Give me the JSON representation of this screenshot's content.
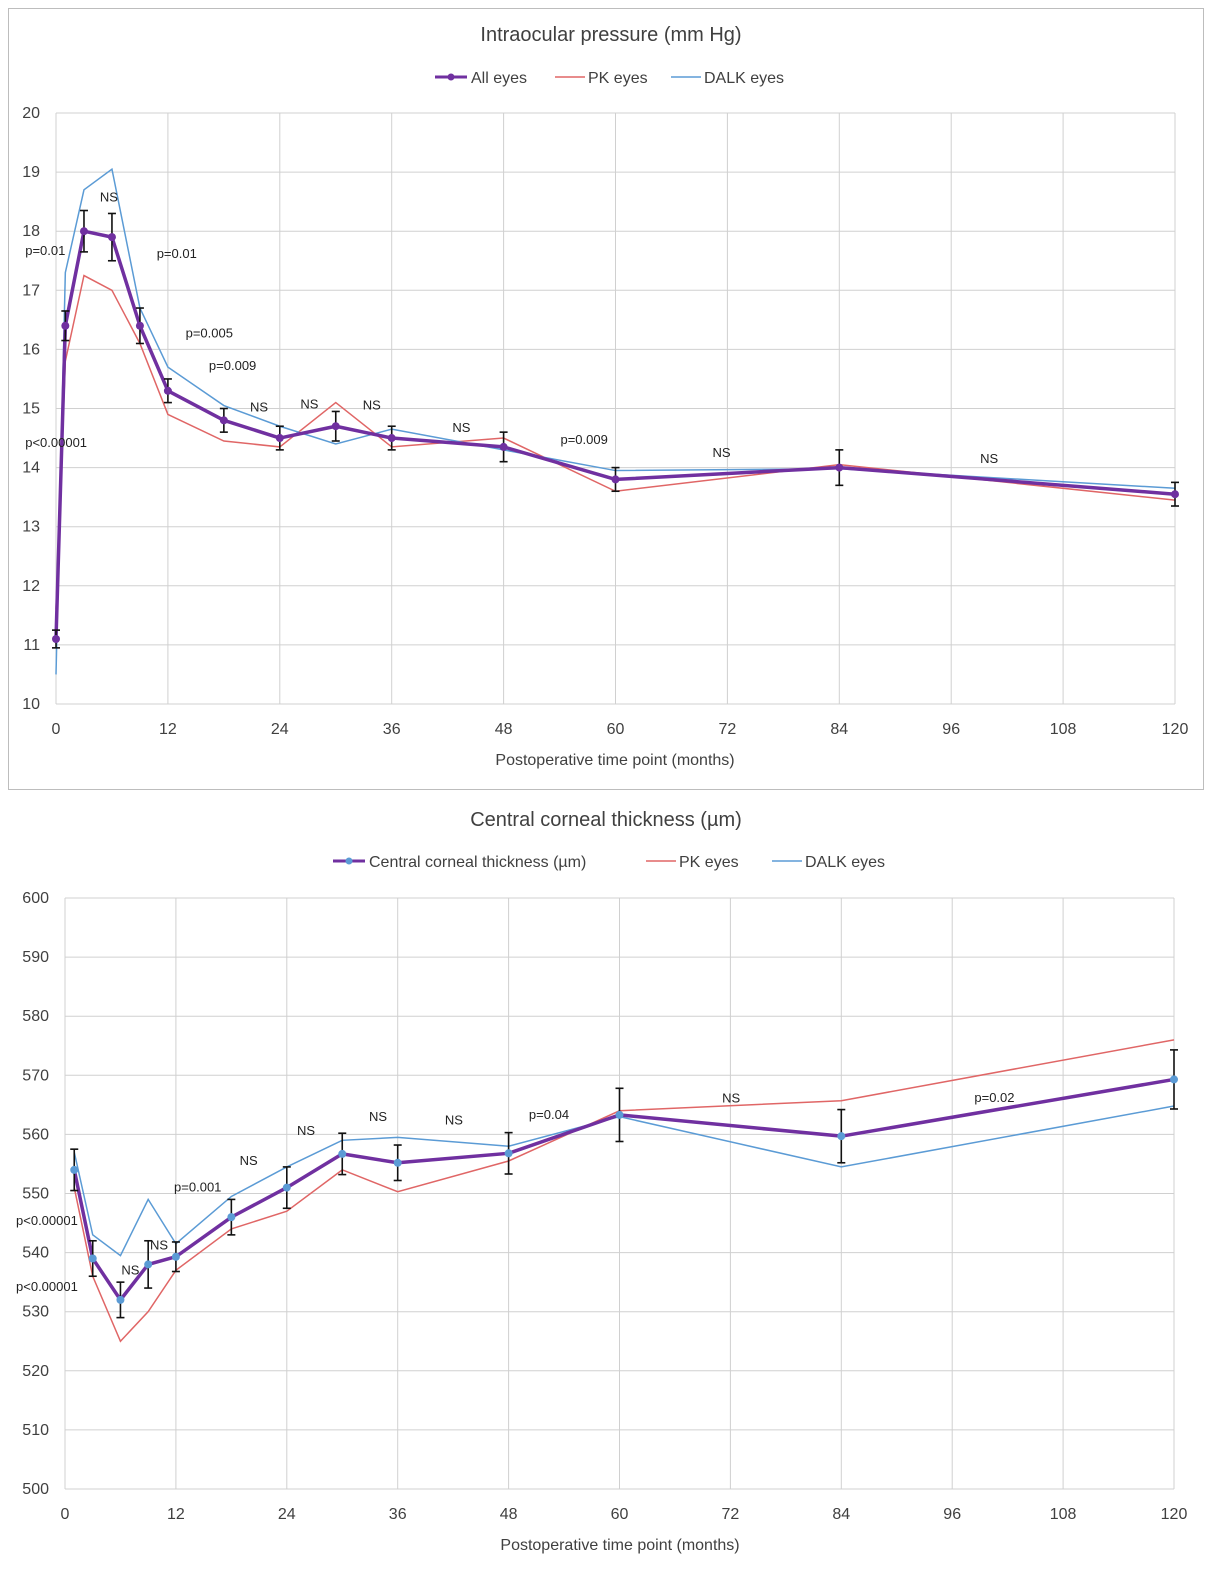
{
  "chart_data": [
    {
      "type": "line",
      "title": "Intraocular pressure (mm Hg)",
      "xlabel": "Postoperative time point (months)",
      "ylabel": "",
      "xlim": [
        0,
        120
      ],
      "ylim": [
        10,
        20
      ],
      "xticks": [
        "0",
        "12",
        "24",
        "36",
        "48",
        "60",
        "72",
        "84",
        "96",
        "108",
        "120"
      ],
      "yticks": [
        "10",
        "11",
        "12",
        "13",
        "14",
        "15",
        "16",
        "17",
        "18",
        "19",
        "20"
      ],
      "grid": true,
      "legend_position": "top",
      "colors": {
        "all": "#7030a0",
        "pk": "#e06666",
        "dalk": "#5b9bd5"
      },
      "series": [
        {
          "name": "All eyes",
          "x": [
            0,
            1,
            3,
            6,
            9,
            12,
            18,
            24,
            30,
            36,
            48,
            60,
            84,
            120
          ],
          "y": [
            11.1,
            16.4,
            18.0,
            17.9,
            16.4,
            15.3,
            14.8,
            14.5,
            14.7,
            14.5,
            14.35,
            13.8,
            14.0,
            13.55
          ],
          "err": [
            0.15,
            0.25,
            0.35,
            0.4,
            0.3,
            0.2,
            0.2,
            0.2,
            0.25,
            0.2,
            0.25,
            0.2,
            0.3,
            0.2
          ]
        },
        {
          "name": "PK eyes",
          "x": [
            0,
            1,
            3,
            6,
            9,
            12,
            18,
            24,
            30,
            36,
            48,
            60,
            84,
            120
          ],
          "y": [
            11.6,
            15.8,
            17.25,
            17.0,
            16.1,
            14.9,
            14.45,
            14.35,
            15.1,
            14.35,
            14.5,
            13.6,
            14.05,
            13.45
          ]
        },
        {
          "name": "DALK eyes",
          "x": [
            0,
            1,
            3,
            6,
            9,
            12,
            18,
            24,
            30,
            36,
            48,
            60,
            84,
            120
          ],
          "y": [
            10.5,
            17.3,
            18.7,
            19.05,
            16.7,
            15.7,
            15.05,
            14.7,
            14.4,
            14.65,
            14.3,
            13.95,
            13.98,
            13.65
          ]
        }
      ],
      "annotations": [
        {
          "text": "p=0.01",
          "x": -3.3,
          "y": 17.6
        },
        {
          "text": "NS",
          "x": 4.7,
          "y": 18.5
        },
        {
          "text": "p=0.01",
          "x": 10.8,
          "y": 17.55
        },
        {
          "text": "p=0.005",
          "x": 13.9,
          "y": 16.2
        },
        {
          "text": "p=0.009",
          "x": 16.4,
          "y": 15.65
        },
        {
          "text": "p<0.00001",
          "x": -3.3,
          "y": 14.35
        },
        {
          "text": "NS",
          "x": 20.8,
          "y": 14.95
        },
        {
          "text": "NS",
          "x": 26.2,
          "y": 15.0
        },
        {
          "text": "NS",
          "x": 32.9,
          "y": 14.98
        },
        {
          "text": "NS",
          "x": 42.5,
          "y": 14.6
        },
        {
          "text": "p=0.009",
          "x": 54.1,
          "y": 14.4
        },
        {
          "text": "NS",
          "x": 70.4,
          "y": 14.18
        },
        {
          "text": "NS",
          "x": 99.1,
          "y": 14.08
        }
      ]
    },
    {
      "type": "line",
      "title": "Central corneal thickness (µm)",
      "xlabel": "Postoperative time point (months)",
      "ylabel": "",
      "xlim": [
        0,
        120
      ],
      "ylim": [
        500,
        600
      ],
      "xticks": [
        "0",
        "12",
        "24",
        "36",
        "48",
        "60",
        "72",
        "84",
        "96",
        "108",
        "120"
      ],
      "yticks": [
        "500",
        "510",
        "520",
        "530",
        "540",
        "550",
        "560",
        "570",
        "580",
        "590",
        "600"
      ],
      "grid": true,
      "legend_position": "top",
      "colors": {
        "all": "#7030a0",
        "marker": "#5b9bd5",
        "pk": "#e06666",
        "dalk": "#5b9bd5"
      },
      "series": [
        {
          "name": "Central corneal thickness (µm)",
          "x": [
            1,
            3,
            6,
            9,
            12,
            18,
            24,
            30,
            36,
            48,
            60,
            84,
            120
          ],
          "y": [
            554,
            539,
            532,
            538,
            539.3,
            546,
            551,
            556.7,
            555.2,
            556.8,
            563.3,
            559.7,
            569.3
          ],
          "err": [
            3.5,
            3,
            3,
            4,
            2.5,
            3,
            3.5,
            3.5,
            3,
            3.5,
            4.5,
            4.5,
            5
          ]
        },
        {
          "name": "PK eyes",
          "x": [
            1,
            3,
            6,
            9,
            12,
            18,
            24,
            30,
            36,
            48,
            60,
            84,
            120
          ],
          "y": [
            551,
            536,
            525,
            530,
            537,
            544,
            547,
            554,
            550.3,
            555.5,
            564,
            565.7,
            576
          ]
        },
        {
          "name": "DALK eyes",
          "x": [
            1,
            3,
            6,
            9,
            12,
            18,
            24,
            30,
            36,
            48,
            60,
            84,
            120
          ],
          "y": [
            557,
            543,
            539.5,
            549,
            541.5,
            549.5,
            554.5,
            559,
            559.5,
            558,
            563,
            554.5,
            564.8
          ]
        }
      ],
      "annotations": [
        {
          "text": "p<0.00001",
          "x": -5.3,
          "y": 544.7
        },
        {
          "text": "p<0.00001",
          "x": -5.3,
          "y": 533.5
        },
        {
          "text": "NS",
          "x": 6.1,
          "y": 536.3
        },
        {
          "text": "NS",
          "x": 9.2,
          "y": 540.5
        },
        {
          "text": "p=0.001",
          "x": 11.8,
          "y": 550.3
        },
        {
          "text": "NS",
          "x": 18.9,
          "y": 554.8
        },
        {
          "text": "NS",
          "x": 25.1,
          "y": 559.9
        },
        {
          "text": "NS",
          "x": 32.9,
          "y": 562.3
        },
        {
          "text": "NS",
          "x": 41.1,
          "y": 561.7
        },
        {
          "text": "p=0.04",
          "x": 50.2,
          "y": 562.6
        },
        {
          "text": "NS",
          "x": 71.1,
          "y": 565.4
        },
        {
          "text": "p=0.02",
          "x": 98.4,
          "y": 565.5
        }
      ]
    }
  ]
}
